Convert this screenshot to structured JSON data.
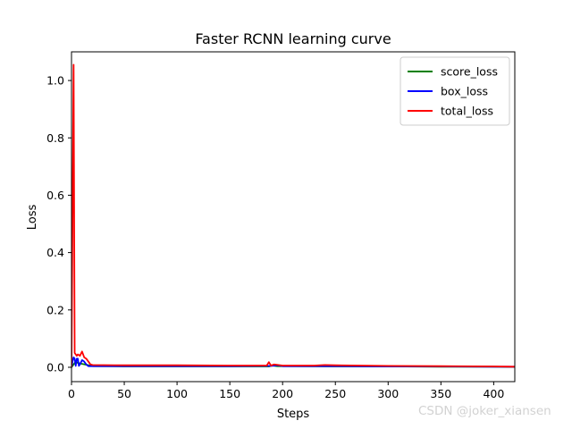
{
  "chart_data": {
    "type": "line",
    "title": "Faster RCNN learning curve",
    "xlabel": "Steps",
    "ylabel": "Loss",
    "xlim": [
      0,
      420
    ],
    "ylim": [
      -0.05,
      1.1
    ],
    "xticks": [
      0,
      50,
      100,
      150,
      200,
      250,
      300,
      350,
      400
    ],
    "yticks": [
      0.0,
      0.2,
      0.4,
      0.6,
      0.8,
      1.0
    ],
    "legend_position": "top-right",
    "grid": false,
    "series": [
      {
        "name": "score_loss",
        "color": "#008000",
        "points": [
          [
            0,
            0.0
          ],
          [
            2,
            0.01
          ],
          [
            4,
            0.02
          ],
          [
            6,
            0.015
          ],
          [
            10,
            0.012
          ],
          [
            15,
            0.008
          ],
          [
            20,
            0.004
          ],
          [
            50,
            0.003
          ],
          [
            100,
            0.003
          ],
          [
            150,
            0.003
          ],
          [
            187,
            0.003
          ],
          [
            190,
            0.006
          ],
          [
            195,
            0.004
          ],
          [
            250,
            0.003
          ],
          [
            300,
            0.003
          ],
          [
            350,
            0.002
          ],
          [
            400,
            0.002
          ],
          [
            420,
            0.001
          ]
        ]
      },
      {
        "name": "box_loss",
        "color": "#0000ff",
        "points": [
          [
            0,
            0.0
          ],
          [
            1,
            0.02
          ],
          [
            2,
            0.035
          ],
          [
            3,
            0.03
          ],
          [
            4,
            0.005
          ],
          [
            5,
            0.03
          ],
          [
            6,
            0.03
          ],
          [
            7,
            0.005
          ],
          [
            8,
            0.01
          ],
          [
            10,
            0.025
          ],
          [
            12,
            0.02
          ],
          [
            14,
            0.01
          ],
          [
            16,
            0.004
          ],
          [
            18,
            0.004
          ],
          [
            50,
            0.004
          ],
          [
            100,
            0.004
          ],
          [
            150,
            0.004
          ],
          [
            190,
            0.005
          ],
          [
            195,
            0.007
          ],
          [
            200,
            0.004
          ],
          [
            250,
            0.004
          ],
          [
            300,
            0.003
          ],
          [
            350,
            0.003
          ],
          [
            400,
            0.002
          ],
          [
            420,
            0.002
          ]
        ]
      },
      {
        "name": "total_loss",
        "color": "#ff0000",
        "points": [
          [
            0,
            0.0
          ],
          [
            1,
            0.55
          ],
          [
            2,
            1.055
          ],
          [
            3,
            0.05
          ],
          [
            4,
            0.045
          ],
          [
            5,
            0.04
          ],
          [
            6,
            0.045
          ],
          [
            8,
            0.04
          ],
          [
            10,
            0.055
          ],
          [
            12,
            0.035
          ],
          [
            14,
            0.03
          ],
          [
            16,
            0.02
          ],
          [
            18,
            0.01
          ],
          [
            20,
            0.008
          ],
          [
            50,
            0.007
          ],
          [
            100,
            0.007
          ],
          [
            150,
            0.006
          ],
          [
            185,
            0.006
          ],
          [
            187,
            0.018
          ],
          [
            189,
            0.006
          ],
          [
            192,
            0.01
          ],
          [
            196,
            0.008
          ],
          [
            200,
            0.006
          ],
          [
            230,
            0.006
          ],
          [
            240,
            0.008
          ],
          [
            250,
            0.007
          ],
          [
            300,
            0.005
          ],
          [
            350,
            0.004
          ],
          [
            400,
            0.003
          ],
          [
            420,
            0.002
          ]
        ]
      }
    ]
  },
  "watermark": "CSDN @joker_xiansen"
}
